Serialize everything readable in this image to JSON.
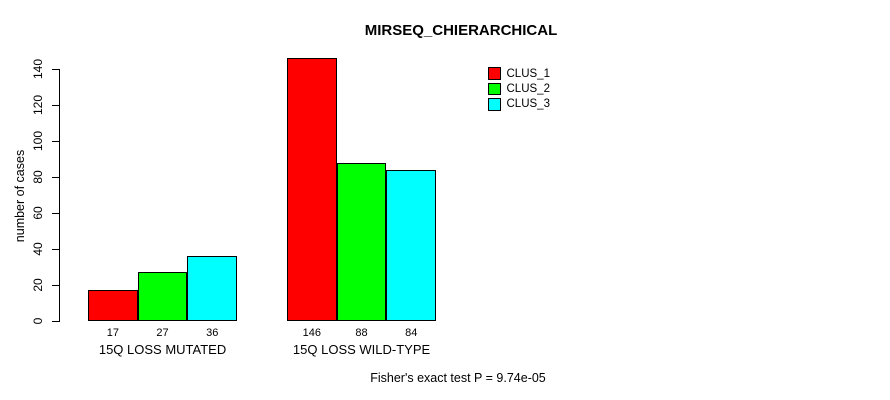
{
  "chart_data": {
    "type": "bar",
    "title": "MIRSEQ_CHIERARCHICAL",
    "ylabel": "number of cases",
    "xlabel": "",
    "ylim": [
      0,
      140
    ],
    "yticks": [
      0,
      20,
      40,
      60,
      80,
      100,
      120,
      140
    ],
    "grid": false,
    "legend_position": "top-right-inside",
    "bar_value_labels": true,
    "categories": [
      "15Q LOSS MUTATED",
      "15Q LOSS WILD-TYPE"
    ],
    "series": [
      {
        "name": "CLUS_1",
        "color": "#FF0000",
        "values": [
          17,
          146
        ]
      },
      {
        "name": "CLUS_2",
        "color": "#00FF00",
        "values": [
          27,
          88
        ]
      },
      {
        "name": "CLUS_3",
        "color": "#00FFFF",
        "values": [
          36,
          84
        ]
      }
    ],
    "footnote": "Fisher's exact test P = 9.74e-05"
  },
  "palette": {
    "background": "#FFFFFF",
    "axis": "#000000",
    "text": "#000000"
  }
}
